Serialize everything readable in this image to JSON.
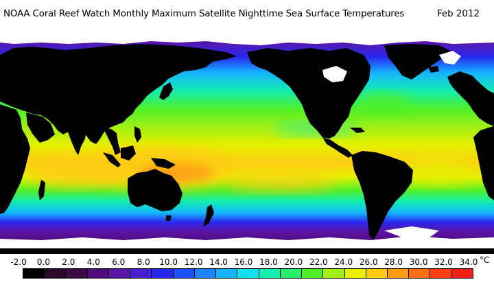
{
  "header": {
    "title": "NOAA Coral Reef Watch Monthly Maximum Satellite Nighttime Sea Surface Temperatures",
    "date": "Feb 2012"
  },
  "legend": {
    "ticks": [
      "-2.0",
      "0.0",
      "2.0",
      "4.0",
      "6.0",
      "8.0",
      "10.0",
      "12.0",
      "14.0",
      "16.0",
      "18.0",
      "20.0",
      "22.0",
      "24.0",
      "26.0",
      "28.0",
      "30.0",
      "32.0",
      "34.0"
    ],
    "unit": "°C",
    "colors": [
      "#000000",
      "#2a0a2a",
      "#3a0a46",
      "#4e0a78",
      "#5a14a6",
      "#4a20d2",
      "#2a28f0",
      "#1c50ff",
      "#1c84ff",
      "#14b4ff",
      "#12e0f0",
      "#14ecb0",
      "#28ec6c",
      "#50f028",
      "#a0f014",
      "#e6f000",
      "#ffcc14",
      "#ff9c14",
      "#ff6e14",
      "#ff3c14",
      "#f01e14"
    ]
  },
  "map": {
    "colors": {
      "land": "#000000",
      "ice": "#ffffff",
      "polar": "#3a0a46",
      "cold": "#4e0a78",
      "cool": "#2a28f0",
      "mid": "#14b4ff",
      "mild": "#14ecb0",
      "temperate": "#50f028",
      "warm": "#e6f000",
      "hot": "#ff9c14",
      "hottest": "#ff6e14"
    }
  }
}
